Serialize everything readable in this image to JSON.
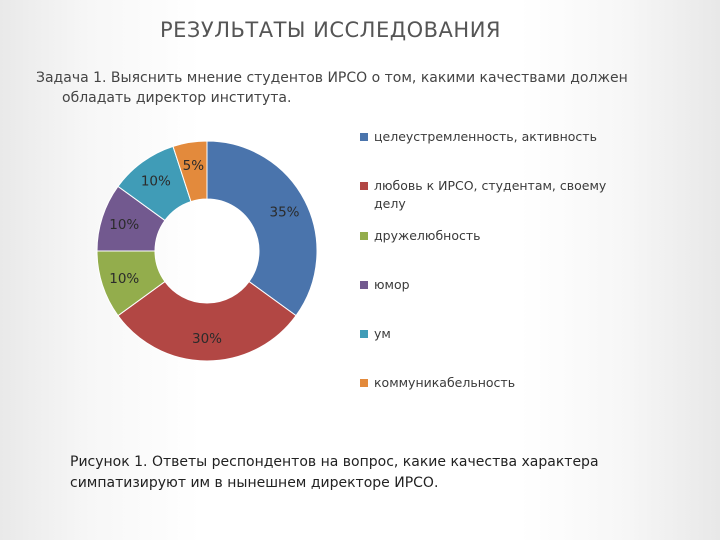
{
  "slide": {
    "title": "РЕЗУЛЬТАТЫ ИССЛЕДОВАНИЯ",
    "task_line1": "Задача 1. Выяснить мнение студентов ИРСО о том, какими качествами должен",
    "task_line2": "обладать директор института.",
    "caption_line1": "Рисунок  1. Ответы респондентов на вопрос, какие качества характера",
    "caption_line2": "симпатизируют им в нынешнем директоре ИРСО."
  },
  "chart_data": {
    "type": "pie",
    "variant": "donut",
    "categories": [
      "целеустремленность, активность",
      "любовь к ИРСО, студентам, своему делу",
      "дружелюбность",
      "юмор",
      "ум",
      "коммуникабельность"
    ],
    "values": [
      35,
      30,
      10,
      10,
      10,
      5
    ],
    "data_labels": [
      "35%",
      "30%",
      "10%",
      "10%",
      "10%",
      "5%"
    ],
    "colors": [
      "#4a74ac",
      "#b24744",
      "#93ad4c",
      "#72598f",
      "#409cb7",
      "#e38a3c"
    ],
    "legend_position": "right"
  },
  "legend": {
    "items": [
      {
        "line1": "целеустремленность, активность",
        "line2": ""
      },
      {
        "line1": "любовь к ИРСО, студентам, своему",
        "line2": "делу"
      },
      {
        "line1": "дружелюбность",
        "line2": ""
      },
      {
        "line1": "юмор",
        "line2": ""
      },
      {
        "line1": "ум",
        "line2": ""
      },
      {
        "line1": "коммуникабельность",
        "line2": ""
      }
    ]
  }
}
